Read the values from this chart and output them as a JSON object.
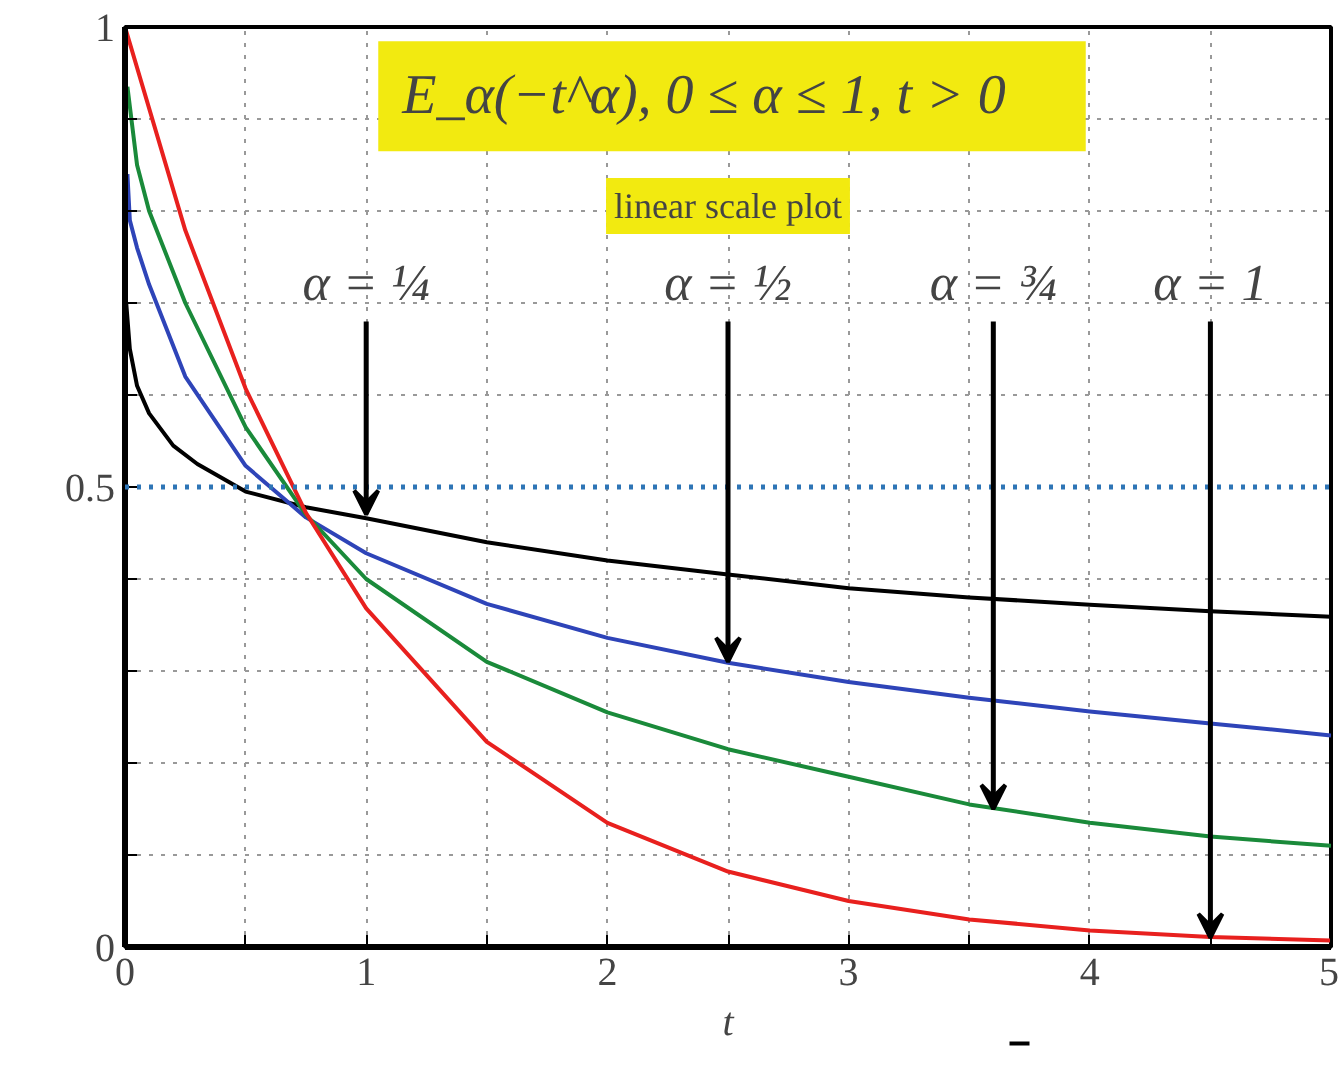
{
  "chart_data": {
    "type": "line",
    "title": "E_α(−t^α),   0 ≤ α ≤ 1,   t > 0",
    "subtitle": "linear scale plot",
    "xlabel": "t",
    "series": [
      {
        "color": "#000000",
        "x": [
          0.005,
          0.02,
          0.05,
          0.1,
          0.2,
          0.3,
          0.5,
          0.75,
          1,
          1.5,
          2,
          2.5,
          3,
          3.5,
          4,
          4.5,
          5
        ],
        "values": [
          0.7,
          0.65,
          0.61,
          0.58,
          0.545,
          0.525,
          0.495,
          0.478,
          0.466,
          0.44,
          0.42,
          0.405,
          0.39,
          0.38,
          0.372,
          0.365,
          0.359
        ]
      },
      {
        "color": "#2e44b8",
        "x": [
          0.01,
          0.02,
          0.05,
          0.1,
          0.25,
          0.5,
          0.75,
          1,
          1.5,
          2,
          2.5,
          3,
          3.5,
          4,
          4.5,
          5
        ],
        "values": [
          0.84,
          0.79,
          0.76,
          0.72,
          0.62,
          0.523,
          0.467,
          0.428,
          0.373,
          0.336,
          0.309,
          0.288,
          0.271,
          0.256,
          0.243,
          0.23
        ]
      },
      {
        "color": "#1a8a3a",
        "x": [
          0.01,
          0.05,
          0.1,
          0.25,
          0.5,
          0.75,
          1,
          1.5,
          2,
          2.5,
          3,
          3.5,
          4,
          4.5,
          5
        ],
        "values": [
          0.935,
          0.85,
          0.8,
          0.7,
          0.565,
          0.47,
          0.4,
          0.31,
          0.255,
          0.215,
          0.185,
          0.155,
          0.135,
          0.12,
          0.11
        ]
      },
      {
        "color": "#e8201e",
        "x": [
          0,
          0.25,
          0.5,
          0.75,
          1,
          1.5,
          2,
          2.5,
          3,
          3.5,
          4,
          4.5,
          5
        ],
        "values": [
          1,
          0.779,
          0.607,
          0.472,
          0.368,
          0.223,
          0.135,
          0.082,
          0.05,
          0.03,
          0.018,
          0.011,
          0.007
        ]
      }
    ],
    "annotations": [
      {
        "text": "α = ¼",
        "x": 1,
        "y": 0.47
      },
      {
        "text": "α = ½",
        "x": 2.5,
        "y": 0.31
      },
      {
        "text": "α = ¾",
        "x": 3.6,
        "y": 0.15
      },
      {
        "text": "α = 1",
        "x": 4.5,
        "y": 0.01
      }
    ],
    "ref_lines": [
      {
        "axis": "y",
        "value": 0.5,
        "label": null,
        "color": "#2e75b6",
        "line_style": "dotted"
      }
    ],
    "xlim": [
      0,
      5
    ],
    "ylim": [
      0,
      1
    ],
    "xticks": [
      0,
      {
        "value": 0.5,
        "label": null
      },
      1,
      {
        "value": 1.5,
        "label": null
      },
      2,
      {
        "value": 2.5,
        "label": null
      },
      3,
      {
        "value": 3.5,
        "label": null
      },
      4,
      {
        "value": 4.5,
        "label": null
      },
      5
    ],
    "yticks": [
      0,
      {
        "value": 0.1,
        "label": null
      },
      {
        "value": 0.2,
        "label": null
      },
      {
        "value": 0.3,
        "label": null
      },
      {
        "value": 0.4,
        "label": null
      },
      0.5,
      {
        "value": 0.6,
        "label": null
      },
      {
        "value": 0.7,
        "label": null
      },
      {
        "value": 0.8,
        "label": null
      },
      {
        "value": 0.9,
        "label": null
      },
      1
    ],
    "grid": true,
    "marker": "none",
    "line_style": "solid"
  }
}
